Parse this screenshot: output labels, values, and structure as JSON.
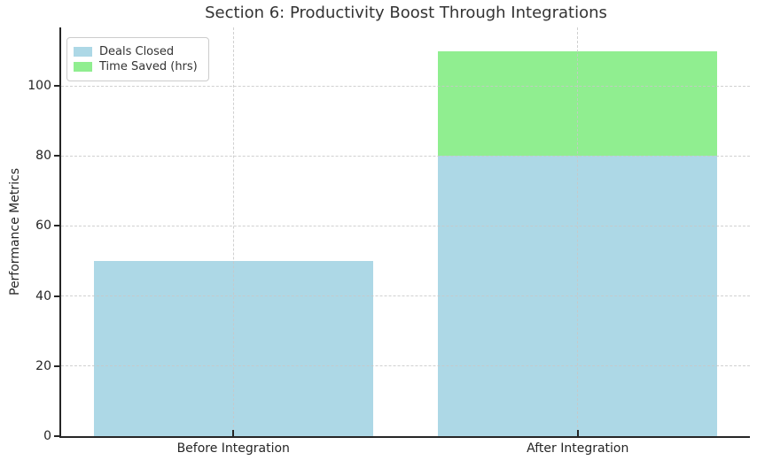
{
  "chart_data": {
    "type": "bar",
    "stacked": true,
    "title": "Section 6: Productivity Boost Through Integrations",
    "xlabel": "",
    "ylabel": "Performance Metrics",
    "categories": [
      "Before Integration",
      "After Integration"
    ],
    "series": [
      {
        "name": "Deals Closed",
        "color": "#ADD8E6",
        "values": [
          50,
          80
        ]
      },
      {
        "name": "Time Saved (hrs)",
        "color": "#90EE90",
        "values": [
          0,
          30
        ]
      }
    ],
    "totals": [
      50,
      110
    ],
    "yticks": [
      0,
      20,
      40,
      60,
      80,
      100
    ],
    "ylim": [
      0,
      116.7
    ],
    "grid": true,
    "grid_style": "dashed",
    "legend_position": "upper left"
  }
}
